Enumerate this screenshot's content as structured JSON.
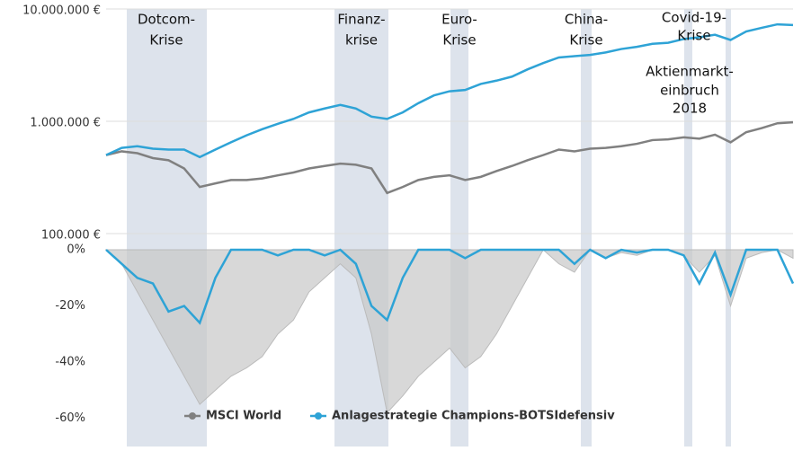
{
  "chart_data": [
    {
      "type": "line",
      "log_scale": true,
      "ylim": [
        100000,
        10000000
      ],
      "yticks": [
        {
          "value": 10000000,
          "label": "10.000.000 €"
        },
        {
          "value": 1000000,
          "label": "1.000.000 €"
        },
        {
          "value": 100000,
          "label": "100.000 €"
        }
      ],
      "grid": true,
      "legend": "bottom",
      "annotations": [
        {
          "lines": [
            "Dotcom-",
            "Krise"
          ]
        },
        {
          "lines": [
            "Finanz-",
            "krise"
          ]
        },
        {
          "lines": [
            "Euro-",
            "Krise"
          ]
        },
        {
          "lines": [
            "China-",
            "Krise"
          ]
        },
        {
          "lines": [
            "Aktienmarkt-",
            "einbruch",
            "2018"
          ]
        },
        {
          "lines": [
            "Covid-19-",
            "Krise"
          ]
        }
      ],
      "series": [
        {
          "name": "MSCI World",
          "color": "#808080",
          "values": [
            500000,
            540000,
            520000,
            470000,
            450000,
            380000,
            260000,
            280000,
            300000,
            300000,
            310000,
            330000,
            350000,
            380000,
            400000,
            420000,
            410000,
            380000,
            230000,
            260000,
            300000,
            320000,
            330000,
            300000,
            320000,
            360000,
            400000,
            450000,
            500000,
            560000,
            540000,
            570000,
            580000,
            600000,
            630000,
            680000,
            690000,
            720000,
            700000,
            760000,
            650000,
            800000,
            870000,
            960000,
            980000
          ]
        },
        {
          "name": "Anlagestrategie Champions-BOTSIdefensiv",
          "color": "#2ea3d6",
          "values": [
            500000,
            580000,
            600000,
            570000,
            560000,
            560000,
            480000,
            560000,
            650000,
            750000,
            850000,
            950000,
            1050000,
            1200000,
            1300000,
            1400000,
            1300000,
            1100000,
            1050000,
            1200000,
            1450000,
            1700000,
            1850000,
            1900000,
            2150000,
            2300000,
            2500000,
            2900000,
            3300000,
            3700000,
            3800000,
            3900000,
            4100000,
            4400000,
            4600000,
            4900000,
            5000000,
            5400000,
            5600000,
            5900000,
            5300000,
            6300000,
            6800000,
            7300000,
            7200000
          ]
        }
      ]
    },
    {
      "type": "area",
      "ylim": [
        -70,
        0
      ],
      "yticks": [
        {
          "value": 0,
          "label": "0%"
        },
        {
          "value": -20,
          "label": "-20%"
        },
        {
          "value": -40,
          "label": "-40%"
        },
        {
          "value": -60,
          "label": "-60%"
        }
      ],
      "series": [
        {
          "name": "MSCI World",
          "color": "#c8c8c8",
          "values": [
            0,
            -5,
            -15,
            -25,
            -35,
            -45,
            -55,
            -50,
            -45,
            -42,
            -38,
            -30,
            -25,
            -15,
            -10,
            -5,
            -10,
            -30,
            -58,
            -52,
            -45,
            -40,
            -35,
            -42,
            -38,
            -30,
            -20,
            -10,
            0,
            -5,
            -8,
            0,
            -3,
            -1,
            -2,
            0,
            0,
            -2,
            -8,
            -2,
            -20,
            -3,
            -1,
            0,
            -3
          ]
        },
        {
          "name": "Anlagestrategie Champions-BOTSIdefensiv",
          "color": "#2ea3d6",
          "values": [
            0,
            -5,
            -10,
            -12,
            -22,
            -20,
            -26,
            -10,
            0,
            0,
            0,
            -2,
            0,
            0,
            -2,
            0,
            -5,
            -20,
            -25,
            -10,
            0,
            0,
            0,
            -3,
            0,
            0,
            0,
            0,
            0,
            0,
            -5,
            0,
            -3,
            0,
            -1,
            0,
            0,
            -2,
            -12,
            -1,
            -16,
            0,
            0,
            0,
            -12
          ]
        }
      ]
    }
  ]
}
